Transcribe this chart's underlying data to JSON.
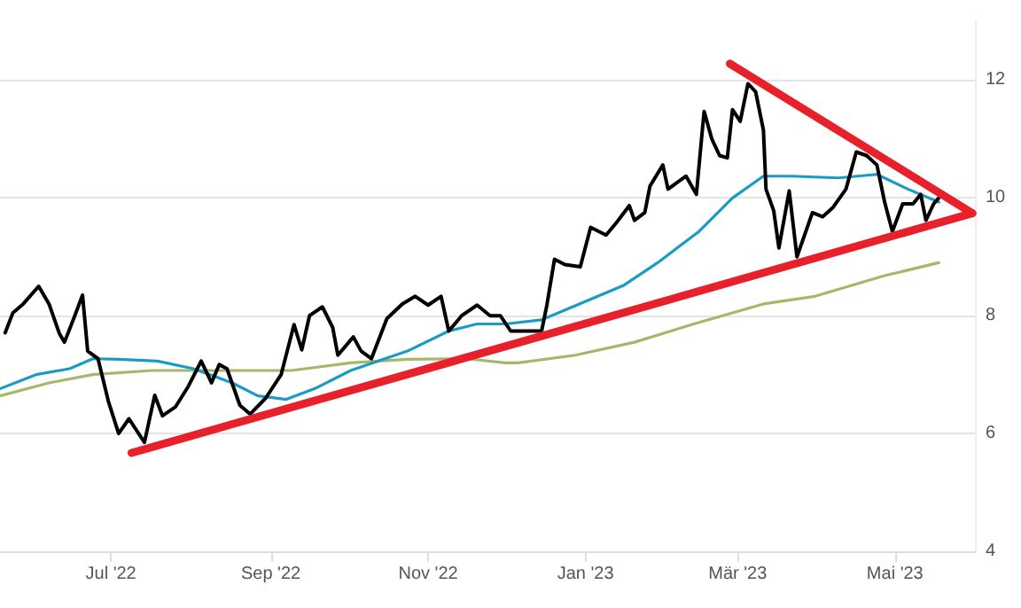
{
  "chart_data": {
    "type": "line",
    "xlim": [
      "2022-05-19",
      "2023-06-01"
    ],
    "ylim": [
      4,
      13
    ],
    "yticks": [
      4,
      6,
      8,
      10,
      12
    ],
    "xticks": [
      {
        "value": "2022-07-01",
        "label": "Jul '22"
      },
      {
        "value": "2022-09-01",
        "label": "Sep '22"
      },
      {
        "value": "2022-11-01",
        "label": "Nov '22"
      },
      {
        "value": "2023-01-01",
        "label": "Jan '23"
      },
      {
        "value": "2023-03-01",
        "label": "Mär '23"
      },
      {
        "value": "2023-05-01",
        "label": "Mai '23"
      }
    ],
    "grid": "y",
    "marker": "none",
    "line_style": "solid",
    "series": [
      {
        "color": "#a5b86a",
        "x": [
          "2022-05-19",
          "2022-06-07",
          "2022-06-24",
          "2022-07-17",
          "2022-08-17",
          "2022-09-09",
          "2022-10-02",
          "2022-10-24",
          "2022-11-16",
          "2022-12-01",
          "2022-12-06",
          "2022-12-28",
          "2023-01-20",
          "2023-02-12",
          "2023-03-11",
          "2023-03-31",
          "2023-04-27",
          "2023-05-18"
        ],
        "values": [
          6.64,
          6.86,
          7.0,
          7.07,
          7.07,
          7.07,
          7.2,
          7.26,
          7.27,
          7.2,
          7.2,
          7.33,
          7.55,
          7.86,
          8.2,
          8.33,
          8.68,
          8.9
        ]
      },
      {
        "color": "#1a9bc4",
        "x": [
          "2022-05-19",
          "2022-06-02",
          "2022-06-15",
          "2022-06-24",
          "2022-07-04",
          "2022-07-19",
          "2022-08-02",
          "2022-08-17",
          "2022-08-27",
          "2022-09-07",
          "2022-09-18",
          "2022-10-02",
          "2022-10-24",
          "2022-11-09",
          "2022-11-20",
          "2022-12-01",
          "2022-12-15",
          "2022-12-28",
          "2023-01-16",
          "2023-01-29",
          "2023-02-14",
          "2023-02-27",
          "2023-03-11",
          "2023-03-22",
          "2023-04-09",
          "2023-04-24",
          "2023-05-06",
          "2023-05-18"
        ],
        "values": [
          6.76,
          7.0,
          7.1,
          7.27,
          7.26,
          7.23,
          7.1,
          6.86,
          6.64,
          6.58,
          6.76,
          7.07,
          7.4,
          7.74,
          7.86,
          7.86,
          7.93,
          8.17,
          8.52,
          8.9,
          9.43,
          10.0,
          10.37,
          10.37,
          10.34,
          10.4,
          10.15,
          9.93
        ]
      },
      {
        "color": "#000000",
        "x": [
          "2022-05-21",
          "2022-05-24",
          "2022-05-28",
          "2022-06-03",
          "2022-06-07",
          "2022-06-11",
          "2022-06-13",
          "2022-06-17",
          "2022-06-20",
          "2022-06-22",
          "2022-06-26",
          "2022-06-30",
          "2022-07-04",
          "2022-07-08",
          "2022-07-14",
          "2022-07-18",
          "2022-07-21",
          "2022-07-26",
          "2022-07-31",
          "2022-08-05",
          "2022-08-09",
          "2022-08-12",
          "2022-08-15",
          "2022-08-20",
          "2022-08-24",
          "2022-08-30",
          "2022-09-05",
          "2022-09-10",
          "2022-09-13",
          "2022-09-16",
          "2022-09-21",
          "2022-09-25",
          "2022-09-27",
          "2022-10-03",
          "2022-10-06",
          "2022-10-10",
          "2022-10-16",
          "2022-10-22",
          "2022-10-27",
          "2022-11-01",
          "2022-11-06",
          "2022-11-09",
          "2022-11-14",
          "2022-11-20",
          "2022-11-25",
          "2022-11-29",
          "2022-12-03",
          "2022-12-15",
          "2022-12-17",
          "2022-12-20",
          "2022-12-24",
          "2022-12-30",
          "2023-01-03",
          "2023-01-09",
          "2023-01-13",
          "2023-01-18",
          "2023-01-20",
          "2023-01-24",
          "2023-01-26",
          "2023-01-31",
          "2023-02-02",
          "2023-02-09",
          "2023-02-13",
          "2023-02-16",
          "2023-02-19",
          "2023-02-22",
          "2023-02-25",
          "2023-02-27",
          "2023-03-02",
          "2023-03-05",
          "2023-03-08",
          "2023-03-11",
          "2023-03-12",
          "2023-03-15",
          "2023-03-17",
          "2023-03-21",
          "2023-03-24",
          "2023-03-30",
          "2023-04-03",
          "2023-04-07",
          "2023-04-12",
          "2023-04-16",
          "2023-04-20",
          "2023-04-24",
          "2023-04-27",
          "2023-04-30",
          "2023-05-04",
          "2023-05-08",
          "2023-05-11",
          "2023-05-13",
          "2023-05-16",
          "2023-05-18"
        ],
        "values": [
          7.71,
          8.05,
          8.2,
          8.5,
          8.2,
          7.7,
          7.55,
          8.0,
          8.35,
          7.4,
          7.27,
          6.55,
          6.0,
          6.25,
          5.85,
          6.65,
          6.3,
          6.45,
          6.8,
          7.23,
          6.86,
          7.17,
          7.1,
          6.48,
          6.33,
          6.6,
          7.0,
          7.85,
          7.42,
          8.0,
          8.15,
          7.8,
          7.33,
          7.64,
          7.4,
          7.27,
          7.95,
          8.2,
          8.33,
          8.18,
          8.33,
          7.74,
          8.0,
          8.18,
          8.0,
          8.0,
          7.74,
          7.74,
          8.17,
          8.96,
          8.87,
          8.83,
          9.5,
          9.37,
          9.58,
          9.87,
          9.62,
          9.75,
          10.2,
          10.56,
          10.15,
          10.37,
          10.06,
          11.47,
          11.0,
          10.72,
          10.68,
          11.5,
          11.3,
          11.94,
          11.8,
          11.15,
          10.15,
          9.78,
          9.15,
          10.12,
          9.0,
          9.75,
          9.68,
          9.84,
          10.15,
          10.78,
          10.72,
          10.56,
          9.93,
          9.43,
          9.9,
          9.9,
          10.06,
          9.62,
          9.9,
          10.0
        ]
      },
      {
        "color": "#e8202a",
        "x": [
          "2022-07-09",
          "2023-05-31"
        ],
        "values": [
          5.67,
          9.74
        ]
      },
      {
        "color": "#e8202a",
        "x": [
          "2023-02-26",
          "2023-05-31"
        ],
        "values": [
          12.28,
          9.74
        ]
      }
    ]
  }
}
